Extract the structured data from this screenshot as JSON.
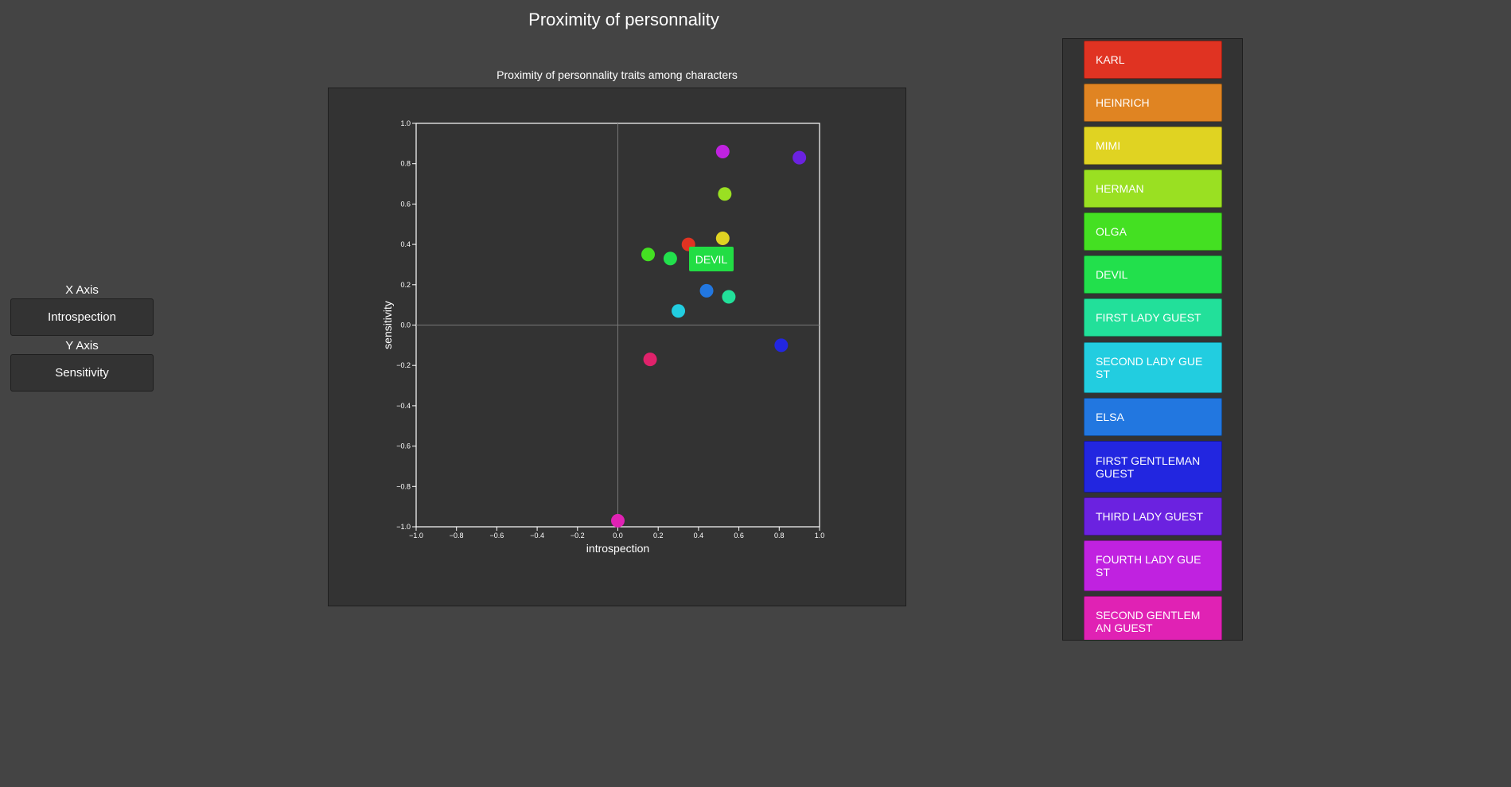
{
  "page_title": "Proximity of personnality",
  "controls": {
    "x_axis_label": "X Axis",
    "x_axis_value": "Introspection",
    "y_axis_label": "Y Axis",
    "y_axis_value": "Sensitivity"
  },
  "tooltip": "DEVIL",
  "legend": [
    {
      "label": "KARL",
      "color": "#e03322"
    },
    {
      "label": "HEINRICH",
      "color": "#e08422"
    },
    {
      "label": "MIMI",
      "color": "#e0d322"
    },
    {
      "label": "HERMAN",
      "color": "#9ae022"
    },
    {
      "label": "OLGA",
      "color": "#44e022"
    },
    {
      "label": "DEVIL",
      "color": "#22e04c"
    },
    {
      "label": "FIRST LADY GUEST",
      "color": "#22e09a"
    },
    {
      "label": "SECOND LADY GUE ST",
      "color": "#22cde0"
    },
    {
      "label": "ELSA",
      "color": "#2277e0"
    },
    {
      "label": "FIRST GENTLEMAN GUEST",
      "color": "#2226e0"
    },
    {
      "label": "THIRD LADY GUEST",
      "color": "#6b22e0"
    },
    {
      "label": "FOURTH LADY GUE ST",
      "color": "#c022e0"
    },
    {
      "label": "SECOND GENTLEM AN GUEST",
      "color": "#e022b4"
    }
  ],
  "chart_data": {
    "type": "scatter",
    "title": "Proximity of personnality traits among characters",
    "xlabel": "introspection",
    "ylabel": "sensitivity",
    "xlim": [
      -1.0,
      1.0
    ],
    "ylim": [
      -1.0,
      1.0
    ],
    "xticks": [
      "−1.0",
      "−0.8",
      "−0.6",
      "−0.4",
      "−0.2",
      "0.0",
      "0.2",
      "0.4",
      "0.6",
      "0.8",
      "1.0"
    ],
    "yticks": [
      "1.0",
      "0.8",
      "0.6",
      "0.4",
      "0.2",
      "0.0",
      "−0.2",
      "−0.4",
      "−0.6",
      "−0.8",
      "−1.0"
    ],
    "points": [
      {
        "x": 0.35,
        "y": 0.4,
        "color": "#e03322"
      },
      {
        "x": 0.52,
        "y": 0.43,
        "color": "#e0d322"
      },
      {
        "x": 0.53,
        "y": 0.65,
        "color": "#9ae022"
      },
      {
        "x": 0.15,
        "y": 0.35,
        "color": "#44e022"
      },
      {
        "x": 0.26,
        "y": 0.33,
        "color": "#22e04c"
      },
      {
        "x": 0.55,
        "y": 0.14,
        "color": "#22e09a"
      },
      {
        "x": 0.3,
        "y": 0.07,
        "color": "#22cde0"
      },
      {
        "x": 0.44,
        "y": 0.17,
        "color": "#2277e0"
      },
      {
        "x": 0.81,
        "y": -0.1,
        "color": "#2226e0"
      },
      {
        "x": 0.9,
        "y": 0.83,
        "color": "#6b22e0"
      },
      {
        "x": 0.52,
        "y": 0.86,
        "color": "#c022e0"
      },
      {
        "x": 0.0,
        "y": -0.97,
        "color": "#e022b4"
      },
      {
        "x": 0.16,
        "y": -0.17,
        "color": "#e0226b"
      }
    ]
  }
}
